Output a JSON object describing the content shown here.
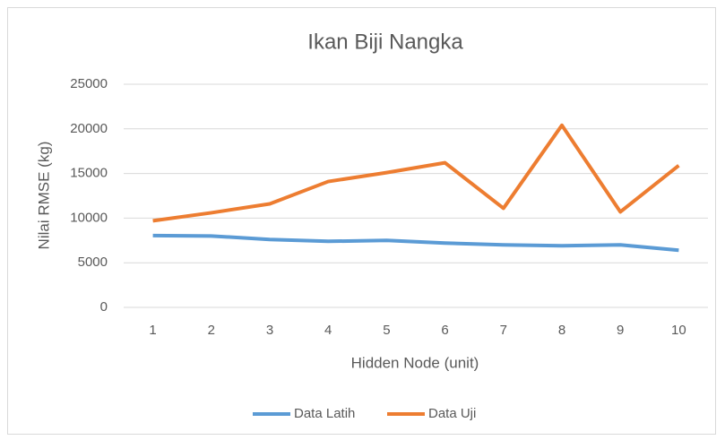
{
  "chart_data": {
    "type": "line",
    "title": "Ikan Biji Nangka",
    "x_label": "Hidden Node (unit)",
    "y_label": "Nilai RMSE (kg)",
    "categories": [
      1,
      2,
      3,
      4,
      5,
      6,
      7,
      8,
      9,
      10
    ],
    "series": [
      {
        "name": "Data Latih",
        "color": "#5b9bd5",
        "values": [
          8050,
          8000,
          7600,
          7400,
          7500,
          7200,
          7000,
          6900,
          7000,
          6400
        ]
      },
      {
        "name": "Data Uji",
        "color": "#ed7d31",
        "values": [
          9700,
          10600,
          11600,
          14100,
          15100,
          16200,
          11100,
          20400,
          10700,
          15900
        ]
      }
    ],
    "ylim": [
      0,
      25000
    ],
    "yticks": [
      0,
      5000,
      10000,
      15000,
      20000,
      25000
    ],
    "grid": true,
    "legend": "bottom"
  }
}
